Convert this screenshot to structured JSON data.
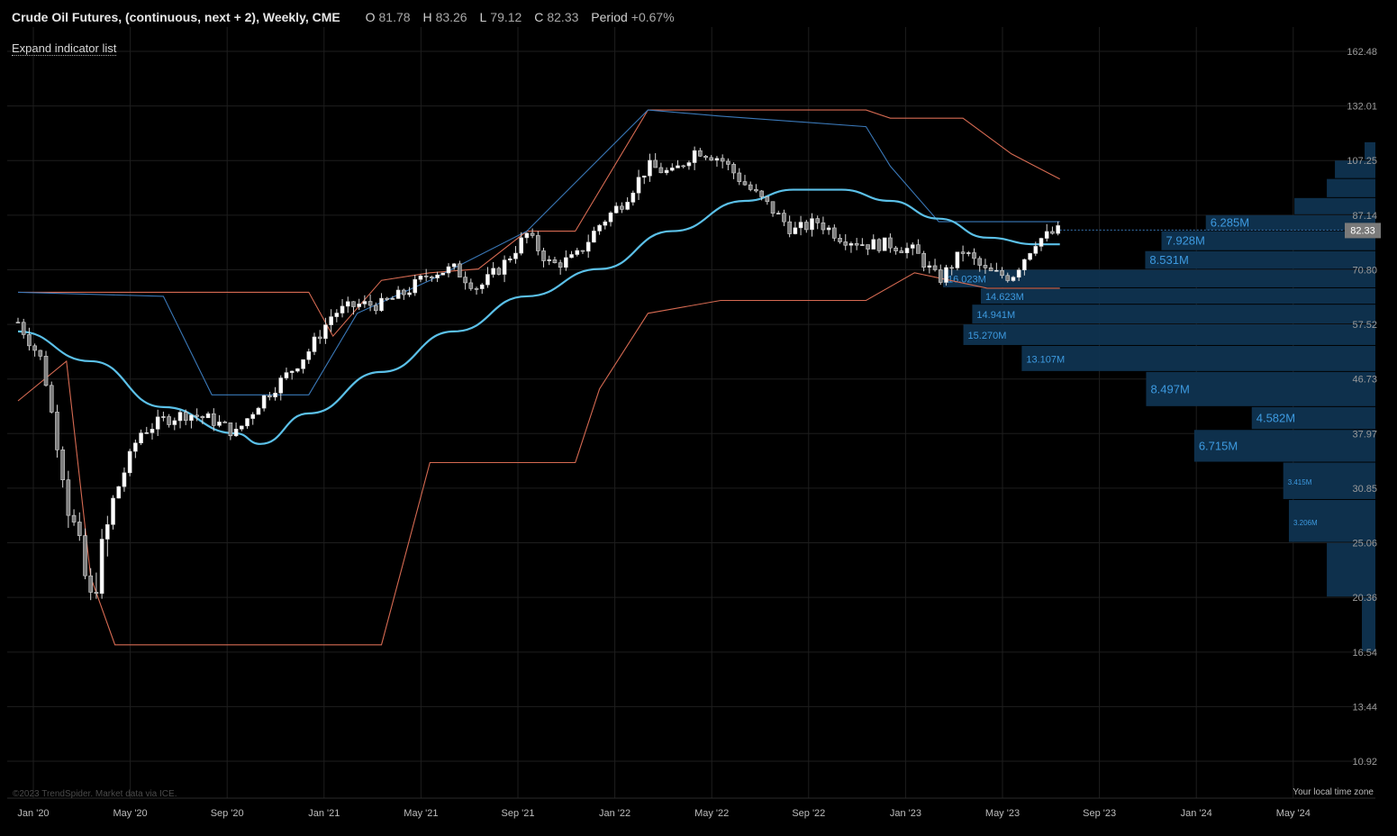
{
  "header": {
    "title": "Crude Oil Futures, (continuous, next + 2), Weekly, CME",
    "open_label": "O",
    "open": "81.78",
    "high_label": "H",
    "high": "83.26",
    "low_label": "L",
    "low": "79.12",
    "close_label": "C",
    "close": "82.33",
    "period_label": "Period",
    "period": "+0.67%"
  },
  "expand_link": "Expand indicator list",
  "copyright": "©2023 TrendSpider. Market data via ICE.",
  "timezone": "Your local time zone",
  "colors": {
    "background": "#000000",
    "grid": "#1e1e1e",
    "candle": "#d8d8d8",
    "moving_average": "#5bc0e8",
    "upper_band": "#d66a52",
    "lower_band": "#d66a52",
    "trailing_line": "#3a78b8",
    "volume_profile": "#0f3350",
    "volume_label": "#3d9ae0",
    "price_tag_bg": "#7a7a7a"
  },
  "chart_data": {
    "type": "candlestick",
    "title": "Crude Oil Futures, (continuous, next + 2), Weekly, CME",
    "y_scale": "log",
    "ylim": [
      10.0,
      190.0
    ],
    "y_ticks": [
      "162.48",
      "132.01",
      "107.25",
      "87.14",
      "70.80",
      "57.52",
      "46.73",
      "37.97",
      "30.85",
      "25.06",
      "20.36",
      "16.54",
      "13.44",
      "10.92"
    ],
    "x_ticks": [
      "Jan '20",
      "May '20",
      "Sep '20",
      "Jan '21",
      "May '21",
      "Sep '21",
      "Jan '22",
      "May '22",
      "Sep '22",
      "Jan '23",
      "May '23",
      "Sep '23",
      "Jan '24",
      "May '24"
    ],
    "last_price": "82.33",
    "close_path": [
      [
        "2020-01",
        58
      ],
      [
        "2020-02",
        50
      ],
      [
        "2020-03",
        30
      ],
      [
        "2020-04",
        20
      ],
      [
        "2020-05",
        30
      ],
      [
        "2020-06",
        38
      ],
      [
        "2020-07",
        40
      ],
      [
        "2020-08",
        41
      ],
      [
        "2020-09",
        40
      ],
      [
        "2020-10",
        38
      ],
      [
        "2020-11",
        43
      ],
      [
        "2020-12",
        47
      ],
      [
        "2021-01",
        52
      ],
      [
        "2021-02",
        60
      ],
      [
        "2021-03",
        62
      ],
      [
        "2021-04",
        62
      ],
      [
        "2021-05",
        65
      ],
      [
        "2021-06",
        70
      ],
      [
        "2021-07",
        71
      ],
      [
        "2021-08",
        66
      ],
      [
        "2021-09",
        72
      ],
      [
        "2021-10",
        81
      ],
      [
        "2021-11",
        72
      ],
      [
        "2021-12",
        74
      ],
      [
        "2022-01",
        84
      ],
      [
        "2022-02",
        92
      ],
      [
        "2022-03",
        105
      ],
      [
        "2022-04",
        102
      ],
      [
        "2022-05",
        112
      ],
      [
        "2022-06",
        108
      ],
      [
        "2022-07",
        98
      ],
      [
        "2022-08",
        90
      ],
      [
        "2022-09",
        82
      ],
      [
        "2022-10",
        85
      ],
      [
        "2022-11",
        80
      ],
      [
        "2022-12",
        78
      ],
      [
        "2023-01",
        78
      ],
      [
        "2023-02",
        76
      ],
      [
        "2023-03",
        68
      ],
      [
        "2023-04",
        76
      ],
      [
        "2023-05",
        70
      ],
      [
        "2023-06",
        69
      ],
      [
        "2023-07",
        79
      ],
      [
        "2023-08",
        82.33
      ]
    ],
    "moving_average": [
      [
        "2020-01",
        56
      ],
      [
        "2020-04",
        50
      ],
      [
        "2020-07",
        42
      ],
      [
        "2020-10",
        38
      ],
      [
        "2020-11",
        36.5
      ],
      [
        "2021-01",
        41
      ],
      [
        "2021-04",
        48
      ],
      [
        "2021-07",
        56
      ],
      [
        "2021-10",
        64
      ],
      [
        "2022-01",
        71
      ],
      [
        "2022-04",
        82
      ],
      [
        "2022-07",
        92
      ],
      [
        "2022-09",
        96
      ],
      [
        "2022-11",
        96
      ],
      [
        "2023-01",
        92
      ],
      [
        "2023-03",
        86
      ],
      [
        "2023-05",
        80
      ],
      [
        "2023-07",
        78
      ],
      [
        "2023-08",
        78
      ]
    ],
    "upper_band": [
      [
        "2020-01",
        65
      ],
      [
        "2020-10",
        65
      ],
      [
        "2021-01",
        65
      ],
      [
        "2021-02",
        55
      ],
      [
        "2021-04",
        68
      ],
      [
        "2021-06",
        70
      ],
      [
        "2021-08",
        71
      ],
      [
        "2021-10",
        82
      ],
      [
        "2021-12",
        82
      ],
      [
        "2022-03",
        130
      ],
      [
        "2022-09",
        130
      ],
      [
        "2022-12",
        130
      ],
      [
        "2023-01",
        126
      ],
      [
        "2023-04",
        126
      ],
      [
        "2023-06",
        110
      ],
      [
        "2023-08",
        100
      ]
    ],
    "lower_band": [
      [
        "2020-01",
        43
      ],
      [
        "2020-03",
        50
      ],
      [
        "2020-04",
        22
      ],
      [
        "2020-05",
        17
      ],
      [
        "2021-04",
        17
      ],
      [
        "2021-06",
        34
      ],
      [
        "2021-12",
        34
      ],
      [
        "2022-01",
        45
      ],
      [
        "2022-03",
        60
      ],
      [
        "2022-06",
        63
      ],
      [
        "2022-12",
        63
      ],
      [
        "2023-02",
        70
      ],
      [
        "2023-05",
        66
      ],
      [
        "2023-08",
        66
      ]
    ],
    "trailing_line": [
      [
        "2020-01",
        65
      ],
      [
        "2020-07",
        64
      ],
      [
        "2020-09",
        44
      ],
      [
        "2021-01",
        44
      ],
      [
        "2021-03",
        60
      ],
      [
        "2021-06",
        68
      ],
      [
        "2021-10",
        82
      ],
      [
        "2022-03",
        130
      ],
      [
        "2022-06",
        127
      ],
      [
        "2022-12",
        122
      ],
      [
        "2023-01",
        105
      ],
      [
        "2023-03",
        85
      ],
      [
        "2023-08",
        85
      ]
    ],
    "volume_profile": [
      {
        "lo": 107.25,
        "hi": 115,
        "value": 0.4
      },
      {
        "lo": 100,
        "hi": 107.25,
        "value": 1.5
      },
      {
        "lo": 93,
        "hi": 100,
        "value": 1.8
      },
      {
        "lo": 87.14,
        "hi": 93,
        "value": 3.0
      },
      {
        "lo": 82,
        "hi": 87.14,
        "value": 6.285,
        "label": "6.285M"
      },
      {
        "lo": 76,
        "hi": 82,
        "value": 7.928,
        "label": "7.928M"
      },
      {
        "lo": 70.8,
        "hi": 76,
        "value": 8.531,
        "label": "8.531M"
      },
      {
        "lo": 66,
        "hi": 70.8,
        "value": 16.023,
        "label": "16.023M"
      },
      {
        "lo": 62,
        "hi": 66,
        "value": 14.623,
        "label": "14.623M"
      },
      {
        "lo": 57.52,
        "hi": 62,
        "value": 14.941,
        "label": "14.941M"
      },
      {
        "lo": 53,
        "hi": 57.52,
        "value": 15.27,
        "label": "15.270M"
      },
      {
        "lo": 48,
        "hi": 53,
        "value": 13.107,
        "label": "13.107M"
      },
      {
        "lo": 42,
        "hi": 48,
        "value": 8.497,
        "label": "8.497M"
      },
      {
        "lo": 38.5,
        "hi": 42,
        "value": 4.582,
        "label": "4.582M"
      },
      {
        "lo": 34,
        "hi": 38.5,
        "value": 6.715,
        "label": "6.715M"
      },
      {
        "lo": 29.5,
        "hi": 34,
        "value": 3.415,
        "label": "3.415M"
      },
      {
        "lo": 25.06,
        "hi": 29.5,
        "value": 3.206,
        "label": "3.206M"
      },
      {
        "lo": 20.36,
        "hi": 25.06,
        "value": 1.8
      },
      {
        "lo": 16.54,
        "hi": 20.36,
        "value": 0.5
      }
    ]
  }
}
